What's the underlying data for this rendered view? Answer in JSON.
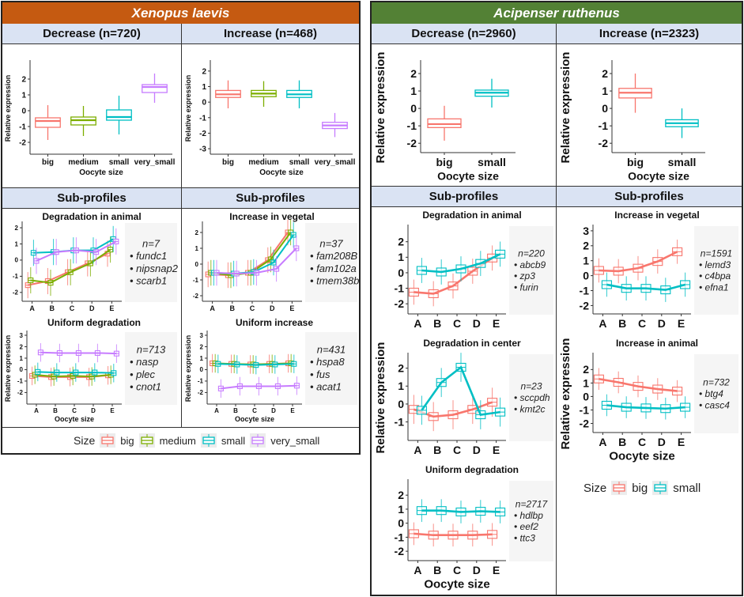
{
  "colors": {
    "xenopus_header": "#c55a11",
    "acipenser_header": "#538135",
    "subheader_bg": "#dae3f3",
    "big": "#f8766d",
    "medium": "#7cae00",
    "small": "#00bfc4",
    "very_small": "#c77cff",
    "two_big": "#f8766d",
    "two_small": "#00bfc4"
  },
  "xenopus": {
    "title": "Xenopus laevis",
    "decrease_header": "Decrease (n=720)",
    "increase_header": "Increase (n=468)",
    "sub_header_left": "Sub-profiles",
    "sub_header_right": "Sub-profiles",
    "legend": {
      "title": "Size",
      "items": [
        "big",
        "medium",
        "small",
        "very_small"
      ]
    }
  },
  "acipenser": {
    "title": "Acipenser ruthenus",
    "decrease_header": "Decrease (n=2960)",
    "increase_header": "Increase (n=2323)",
    "sub_header_left": "Sub-profiles",
    "sub_header_right": "Sub-profiles",
    "legend": {
      "title": "Size",
      "items": [
        "big",
        "small"
      ]
    }
  },
  "chart_data": [
    {
      "id": "xl-decrease",
      "type": "box",
      "title": "",
      "xlabel": "Oocyte size",
      "ylabel": "Relative expression",
      "ylim": [
        -2.6,
        2.9
      ],
      "yticks": [
        -2,
        -1,
        0,
        1,
        2
      ],
      "categories": [
        "big",
        "medium",
        "small",
        "very_small"
      ],
      "boxes": [
        {
          "cat": "big",
          "min": -1.85,
          "q1": -1.05,
          "median": -0.65,
          "q3": -0.45,
          "max": 0.35
        },
        {
          "cat": "medium",
          "min": -1.6,
          "q1": -0.9,
          "median": -0.6,
          "q3": -0.4,
          "max": 0.3
        },
        {
          "cat": "small",
          "min": -1.5,
          "q1": -0.6,
          "median": -0.4,
          "q3": 0.05,
          "max": 0.95
        },
        {
          "cat": "very_small",
          "min": 0.5,
          "q1": 1.15,
          "median": 1.5,
          "q3": 1.65,
          "max": 2.35
        }
      ]
    },
    {
      "id": "xl-increase",
      "type": "box",
      "title": "",
      "xlabel": "Oocyte size",
      "ylabel": "Relative expression",
      "ylim": [
        -3.2,
        2.4
      ],
      "yticks": [
        -3,
        -2,
        -1,
        0,
        1,
        2
      ],
      "categories": [
        "big",
        "medium",
        "small",
        "very_small"
      ],
      "boxes": [
        {
          "cat": "big",
          "min": -0.4,
          "q1": 0.3,
          "median": 0.5,
          "q3": 0.75,
          "max": 1.4
        },
        {
          "cat": "medium",
          "min": -0.3,
          "q1": 0.35,
          "median": 0.55,
          "q3": 0.75,
          "max": 1.35
        },
        {
          "cat": "small",
          "min": -0.4,
          "q1": 0.3,
          "median": 0.5,
          "q3": 0.75,
          "max": 1.4
        },
        {
          "cat": "very_small",
          "min": -2.25,
          "q1": -1.7,
          "median": -1.5,
          "q3": -1.3,
          "max": -0.7
        }
      ]
    },
    {
      "id": "ar-decrease",
      "type": "box",
      "title": "",
      "xlabel": "Oocyte size",
      "ylabel": "Relative expression",
      "ylim": [
        -2.4,
        2.5
      ],
      "yticks": [
        -2,
        -1,
        0,
        1,
        2
      ],
      "categories": [
        "big",
        "small"
      ],
      "boxes": [
        {
          "cat": "big",
          "min": -1.85,
          "q1": -1.1,
          "median": -0.9,
          "q3": -0.6,
          "max": 0.15
        },
        {
          "cat": "small",
          "min": 0.05,
          "q1": 0.7,
          "median": 0.9,
          "q3": 1.05,
          "max": 1.7
        }
      ]
    },
    {
      "id": "ar-increase",
      "type": "box",
      "title": "",
      "xlabel": "Oocyte size",
      "ylabel": "Relative expression",
      "ylim": [
        -2.4,
        2.5
      ],
      "yticks": [
        -2,
        -1,
        0,
        1,
        2
      ],
      "categories": [
        "big",
        "small"
      ],
      "boxes": [
        {
          "cat": "big",
          "min": -0.25,
          "q1": 0.6,
          "median": 0.9,
          "q3": 1.15,
          "max": 2.0
        },
        {
          "cat": "small",
          "min": -1.7,
          "q1": -1.05,
          "median": -0.85,
          "q3": -0.65,
          "max": 0.0
        }
      ]
    },
    {
      "id": "xl-deg-animal",
      "type": "line",
      "title": "Degradation in animal",
      "xlabel": "",
      "ylabel": "",
      "ylim": [
        -2.4,
        2.1
      ],
      "yticks": [
        -2,
        -1,
        0,
        1,
        2
      ],
      "x": [
        "A",
        "B",
        "C",
        "D",
        "E"
      ],
      "gene_info": {
        "n": "n=7",
        "genes": [
          "fundc1",
          "nipsnap2",
          "scarb1"
        ],
        "bullet": "•"
      },
      "series": [
        {
          "name": "big",
          "values": [
            -1.55,
            -1.3,
            -0.75,
            -0.2,
            0.4
          ]
        },
        {
          "name": "medium",
          "values": [
            -1.25,
            -1.4,
            -0.75,
            -0.2,
            0.65
          ]
        },
        {
          "name": "small",
          "values": [
            0.45,
            0.5,
            0.6,
            0.6,
            1.3
          ]
        },
        {
          "name": "very_small",
          "values": [
            -0.05,
            0.5,
            0.6,
            0.5,
            1.15
          ]
        }
      ]
    },
    {
      "id": "xl-inc-vegetal",
      "type": "line",
      "title": "Increase in vegetal",
      "xlabel": "",
      "ylabel": "",
      "ylim": [
        -2.2,
        2.4
      ],
      "yticks": [
        -2,
        -1,
        0,
        1,
        2
      ],
      "x": [
        "A",
        "B",
        "C",
        "D",
        "E"
      ],
      "gene_info": {
        "n": "n=37",
        "genes": [
          "fam208B",
          "fam102a",
          "tmem38b"
        ],
        "bullet": "• "
      },
      "series": [
        {
          "name": "big",
          "values": [
            -0.65,
            -0.7,
            -0.55,
            0.25,
            2.0
          ]
        },
        {
          "name": "medium",
          "values": [
            -0.55,
            -0.7,
            -0.55,
            0.3,
            2.0
          ]
        },
        {
          "name": "small",
          "values": [
            -0.55,
            -0.6,
            -0.5,
            0.1,
            1.85
          ]
        },
        {
          "name": "very_small",
          "values": [
            -0.55,
            -0.6,
            -0.55,
            -0.3,
            1.0
          ]
        }
      ]
    },
    {
      "id": "xl-uni-deg",
      "type": "line",
      "title": "Uniform degradation",
      "xlabel": "Oocyte size",
      "ylabel": "Relative expression",
      "ylim": [
        -2.8,
        3.0
      ],
      "yticks": [
        -2,
        -1,
        0,
        1,
        2,
        3
      ],
      "x": [
        "A",
        "B",
        "C",
        "D",
        "E"
      ],
      "gene_info": {
        "n": "n=713",
        "genes": [
          "nasp",
          "plec",
          "cnot1"
        ],
        "bullet": "• "
      },
      "series": [
        {
          "name": "big",
          "values": [
            -0.55,
            -0.65,
            -0.65,
            -0.65,
            -0.5
          ]
        },
        {
          "name": "medium",
          "values": [
            -0.45,
            -0.6,
            -0.55,
            -0.6,
            -0.45
          ]
        },
        {
          "name": "small",
          "values": [
            -0.2,
            -0.25,
            -0.25,
            -0.25,
            -0.3
          ]
        },
        {
          "name": "very_small",
          "values": [
            1.5,
            1.45,
            1.45,
            1.45,
            1.4
          ]
        }
      ]
    },
    {
      "id": "xl-uni-inc",
      "type": "line",
      "title": "Uniform increase",
      "xlabel": "Oocyte size",
      "ylabel": "Relative expression",
      "ylim": [
        -2.8,
        3.0
      ],
      "yticks": [
        -2,
        -1,
        0,
        1,
        2,
        3
      ],
      "x": [
        "A",
        "B",
        "C",
        "D",
        "E"
      ],
      "gene_info": {
        "n": "n=431",
        "genes": [
          "hspa8",
          "fus",
          "acat1"
        ],
        "bullet": "• "
      },
      "series": [
        {
          "name": "big",
          "values": [
            0.55,
            0.5,
            0.45,
            0.5,
            0.55
          ]
        },
        {
          "name": "medium",
          "values": [
            0.55,
            0.5,
            0.45,
            0.5,
            0.55
          ]
        },
        {
          "name": "small",
          "values": [
            0.5,
            0.45,
            0.4,
            0.45,
            0.5
          ]
        },
        {
          "name": "very_small",
          "values": [
            -1.65,
            -1.45,
            -1.45,
            -1.45,
            -1.4
          ]
        }
      ]
    },
    {
      "id": "ar-deg-animal",
      "type": "line",
      "title": "Degradation in animal",
      "xlabel": "",
      "ylabel": "",
      "ylim": [
        -2.5,
        2.8
      ],
      "yticks": [
        -2,
        -1,
        0,
        1,
        2
      ],
      "x": [
        "A",
        "B",
        "C",
        "D",
        "E"
      ],
      "gene_info": {
        "n": "n=220",
        "genes": [
          "abcb9",
          "zp3",
          "furin"
        ],
        "bullet": "• "
      },
      "series": [
        {
          "name": "big",
          "values": [
            -1.25,
            -1.35,
            -0.85,
            0.1,
            0.95
          ]
        },
        {
          "name": "small",
          "values": [
            0.15,
            0.05,
            0.25,
            0.6,
            1.2
          ]
        }
      ]
    },
    {
      "id": "ar-deg-center",
      "type": "line",
      "title": "Degradation in center",
      "xlabel": "",
      "ylabel": "Relative expression",
      "ylim": [
        -1.9,
        2.6
      ],
      "yticks": [
        -1,
        0,
        1,
        2
      ],
      "x": [
        "A",
        "B",
        "C",
        "D",
        "E"
      ],
      "gene_info": {
        "n": "n=23",
        "genes": [
          "sccpdh",
          "kmt2c"
        ],
        "bullet": "• "
      },
      "series": [
        {
          "name": "big",
          "values": [
            -0.3,
            -0.7,
            -0.6,
            -0.3,
            0.1
          ]
        },
        {
          "name": "small",
          "values": [
            -0.35,
            1.2,
            2.05,
            -0.6,
            -0.45
          ]
        }
      ]
    },
    {
      "id": "ar-uni-deg",
      "type": "line",
      "title": "Uniform degradation",
      "xlabel": "Oocyte size",
      "ylabel": "",
      "ylim": [
        -2.5,
        2.8
      ],
      "yticks": [
        -2,
        -1,
        0,
        1,
        2
      ],
      "x": [
        "A",
        "B",
        "C",
        "D",
        "E"
      ],
      "gene_info": {
        "n": "n=2717",
        "genes": [
          "hdlbp",
          "eef2",
          "ttc3"
        ],
        "bullet": "• "
      },
      "series": [
        {
          "name": "big",
          "values": [
            -0.75,
            -0.85,
            -0.85,
            -0.85,
            -0.8
          ]
        },
        {
          "name": "small",
          "values": [
            0.9,
            0.9,
            0.8,
            0.85,
            0.8
          ]
        }
      ]
    },
    {
      "id": "ar-inc-vegetal",
      "type": "line",
      "title": "Increase in vegetal",
      "xlabel": "",
      "ylabel": "",
      "ylim": [
        -2.4,
        3.1
      ],
      "yticks": [
        -2,
        -1,
        0,
        1,
        2,
        3
      ],
      "x": [
        "A",
        "B",
        "C",
        "D",
        "E"
      ],
      "gene_info": {
        "n": "n=1591",
        "genes": [
          "lemd3",
          "c4bpa",
          "efna1"
        ],
        "bullet": "• "
      },
      "series": [
        {
          "name": "big",
          "values": [
            0.35,
            0.3,
            0.5,
            0.95,
            1.6
          ]
        },
        {
          "name": "small",
          "values": [
            -0.6,
            -0.85,
            -0.85,
            -0.95,
            -0.6
          ]
        }
      ]
    },
    {
      "id": "ar-inc-animal",
      "type": "line",
      "title": "Increase in animal",
      "xlabel": "Oocyte size",
      "ylabel": "Relative expression",
      "ylim": [
        -2.5,
        2.9
      ],
      "yticks": [
        -2,
        -1,
        0,
        1,
        2
      ],
      "x": [
        "A",
        "B",
        "C",
        "D",
        "E"
      ],
      "gene_info": {
        "n": "n=732",
        "genes": [
          "btg4",
          "casc4"
        ],
        "bullet": "• "
      },
      "series": [
        {
          "name": "big",
          "values": [
            1.3,
            1.05,
            0.75,
            0.55,
            0.4
          ]
        },
        {
          "name": "small",
          "values": [
            -0.65,
            -0.8,
            -0.85,
            -0.9,
            -0.8
          ]
        }
      ]
    }
  ]
}
